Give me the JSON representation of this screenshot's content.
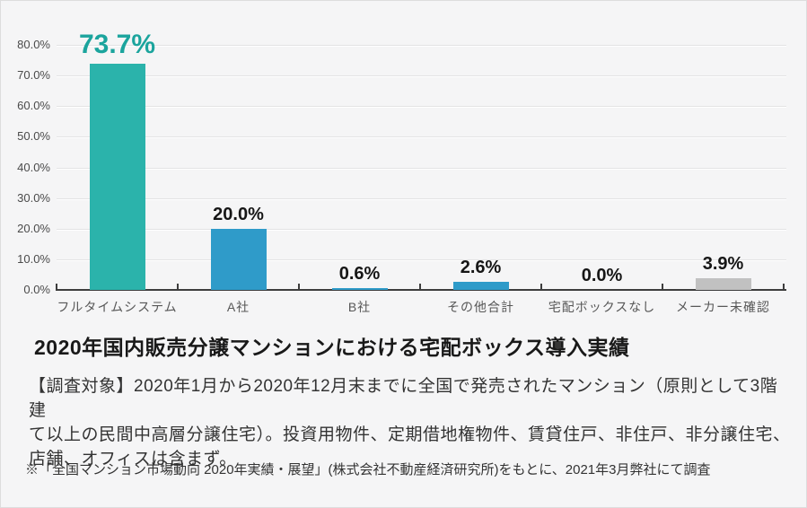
{
  "page": {
    "title": "2020年国内販売分譲マンションにおける宅配ボックス導入実績",
    "description_lines": [
      "【調査対象】2020年1月から2020年12月末までに全国で発売されたマンション（原則として3階建",
      "て以上の民間中高層分譲住宅）。投資用物件、定期借地権物件、賃貸住戸、非住戸、非分譲住宅、",
      "店舗、オフィスは含まず。"
    ],
    "footnote": "※「全国マンション市場動向 2020年実績・展望」(株式会社不動産経済研究所)をもとに、2021年3月弊社にて調査"
  },
  "chart_data": {
    "type": "bar",
    "title": "2020年国内販売分譲マンションにおける宅配ボックス導入実績",
    "categories": [
      "フルタイムシステム",
      "A社",
      "B社",
      "その他合計",
      "宅配ボックスなし",
      "メーカー未確認"
    ],
    "values": [
      73.7,
      20.0,
      0.6,
      2.6,
      0.0,
      3.9
    ],
    "value_labels": [
      "73.7%",
      "20.0%",
      "0.6%",
      "2.6%",
      "0.0%",
      "3.9%"
    ],
    "bar_colors": [
      "#2bb3ab",
      "#2f9bc9",
      "#2f9bc9",
      "#2f9bc9",
      "#c1c1c1",
      "#c1c1c1"
    ],
    "value_label_colors": [
      "#1ba49d",
      "#161616",
      "#161616",
      "#161616",
      "#161616",
      "#161616"
    ],
    "highlight_index": 0,
    "xlabel": "",
    "ylabel": "",
    "ylim": [
      0,
      80
    ],
    "y_tick_step": 10,
    "y_ticks": [
      "0.0%",
      "10.0%",
      "20.0%",
      "30.0%",
      "40.0%",
      "50.0%",
      "60.0%",
      "70.0%",
      "80.0%"
    ],
    "grid": true,
    "legend": "none"
  }
}
